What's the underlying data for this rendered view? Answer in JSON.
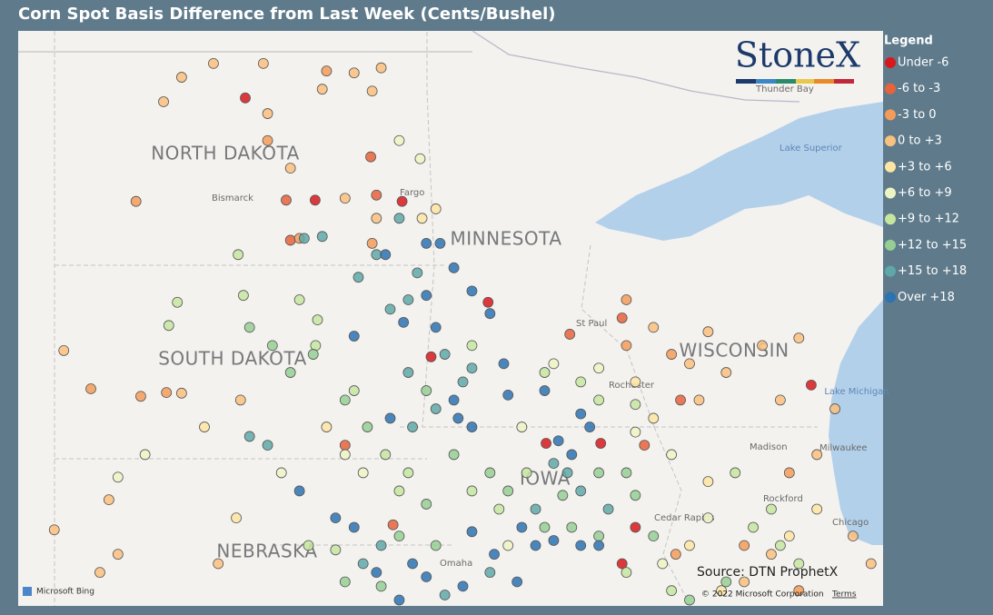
{
  "title": "Corn Spot Basis Difference from Last Week (Cents/Bushel)",
  "logo": "StoneX",
  "source": "Source: DTN ProphetX",
  "attribution": {
    "bing": "Microsoft Bing",
    "copyright": "© 2022 Microsoft Corporation",
    "terms": "Terms"
  },
  "map": {
    "labels": [
      "NORTH DAKOTA",
      "SOUTH DAKOTA",
      "MINNESOTA",
      "WISCONSIN",
      "IOWA",
      "NEBRASKA"
    ],
    "cities": [
      "Bismarck",
      "Fargo",
      "St Paul",
      "Rochester",
      "Madison",
      "Milwaukee",
      "Rockford",
      "Cedar Rapids",
      "Chicago",
      "Omaha",
      "Thunder Bay"
    ],
    "water": [
      "Lake Superior",
      "Lake Michigan"
    ]
  },
  "legend": {
    "title": "Legend",
    "items": [
      {
        "label": "Under -6",
        "color": "#d7191c",
        "points": [
          [
            -100.02,
            48.53
          ],
          [
            -98.55,
            46.9
          ],
          [
            -96.72,
            46.88
          ],
          [
            -92.54,
            43.02
          ],
          [
            -88.11,
            43.95
          ],
          [
            -93.69,
            43.02
          ],
          [
            -94.91,
            45.27
          ],
          [
            -96.11,
            44.4
          ],
          [
            -91.81,
            41.68
          ],
          [
            -92.09,
            41.1
          ]
        ]
      },
      {
        "label": "-6 to -3",
        "color": "#e6633c",
        "points": [
          [
            -97.38,
            47.59
          ],
          [
            -99.16,
            46.9
          ],
          [
            -92.09,
            45.02
          ],
          [
            -93.19,
            44.76
          ],
          [
            -96.91,
            41.72
          ],
          [
            -99.07,
            46.26
          ],
          [
            -91.62,
            42.99
          ],
          [
            -97.92,
            42.99
          ],
          [
            -97.26,
            46.98
          ],
          [
            -90.86,
            43.71
          ]
        ]
      },
      {
        "label": "-3 to 0",
        "color": "#f39c5a",
        "points": [
          [
            -98.88,
            46.29
          ],
          [
            -97.35,
            46.21
          ],
          [
            -98.31,
            48.96
          ],
          [
            -102.32,
            46.88
          ],
          [
            -103.27,
            43.89
          ],
          [
            -102.22,
            43.77
          ],
          [
            -101.68,
            43.83
          ],
          [
            -99.55,
            47.85
          ],
          [
            -90.96,
            41.25
          ],
          [
            -88.37,
            40.67
          ],
          [
            -89.52,
            41.39
          ],
          [
            -92.0,
            44.58
          ],
          [
            -88.57,
            42.55
          ],
          [
            -91.05,
            44.44
          ],
          [
            -92.0,
            45.31
          ]
        ]
      },
      {
        "label": "0 to +3",
        "color": "#f9c07e",
        "points": [
          [
            -101.36,
            48.86
          ],
          [
            -100.69,
            49.08
          ],
          [
            -99.64,
            49.08
          ],
          [
            -101.74,
            48.47
          ],
          [
            -99.55,
            48.28
          ],
          [
            -97.16,
            49.01
          ],
          [
            -97.73,
            48.93
          ],
          [
            -97.35,
            48.64
          ],
          [
            -98.4,
            48.67
          ],
          [
            -99.07,
            47.41
          ],
          [
            -97.92,
            46.93
          ],
          [
            -97.26,
            46.61
          ],
          [
            -101.36,
            43.82
          ],
          [
            -100.12,
            43.71
          ],
          [
            -103.84,
            44.5
          ],
          [
            -104.04,
            41.64
          ],
          [
            -102.7,
            41.25
          ],
          [
            -90.28,
            44.8
          ],
          [
            -89.9,
            44.15
          ],
          [
            -89.14,
            44.58
          ],
          [
            -88.37,
            44.7
          ],
          [
            -88.76,
            43.71
          ],
          [
            -87.99,
            42.84
          ],
          [
            -87.61,
            43.57
          ],
          [
            -87.23,
            41.54
          ],
          [
            -86.85,
            41.1
          ],
          [
            -88.95,
            41.25
          ],
          [
            -89.52,
            40.81
          ],
          [
            -90.47,
            43.71
          ],
          [
            -91.43,
            44.87
          ],
          [
            -103.08,
            40.96
          ],
          [
            -102.89,
            42.12
          ],
          [
            -100.59,
            41.1
          ],
          [
            -90.67,
            44.29
          ]
        ]
      },
      {
        "label": "+3 to +6",
        "color": "#fde6a3",
        "points": [
          [
            -96.3,
            46.61
          ],
          [
            -96.01,
            46.76
          ],
          [
            -100.88,
            43.28
          ],
          [
            -100.21,
            41.83
          ],
          [
            -98.31,
            43.28
          ],
          [
            -91.81,
            44.0
          ],
          [
            -91.43,
            43.42
          ],
          [
            -90.28,
            42.41
          ],
          [
            -90.0,
            40.67
          ],
          [
            -90.67,
            41.39
          ],
          [
            -88.57,
            41.54
          ],
          [
            -87.99,
            41.97
          ]
        ]
      },
      {
        "label": "+6 to +9",
        "color": "#eef5c4",
        "points": [
          [
            -96.78,
            47.85
          ],
          [
            -96.34,
            47.56
          ],
          [
            -102.7,
            42.48
          ],
          [
            -102.13,
            42.84
          ],
          [
            -99.26,
            42.55
          ],
          [
            -97.54,
            42.55
          ],
          [
            -94.49,
            41.39
          ],
          [
            -91.81,
            43.2
          ],
          [
            -91.05,
            42.84
          ],
          [
            -90.28,
            41.83
          ],
          [
            -92.58,
            44.22
          ],
          [
            -93.53,
            44.29
          ],
          [
            -94.2,
            43.28
          ],
          [
            -97.92,
            42.84
          ],
          [
            -91.24,
            41.1
          ]
        ]
      },
      {
        "label": "+9 to +12",
        "color": "#c6e6a0",
        "points": [
          [
            -100.17,
            46.03
          ],
          [
            -100.06,
            45.38
          ],
          [
            -101.45,
            45.27
          ],
          [
            -101.63,
            44.9
          ],
          [
            -98.88,
            45.31
          ],
          [
            -98.5,
            44.99
          ],
          [
            -98.54,
            44.58
          ],
          [
            -97.73,
            43.86
          ],
          [
            -97.07,
            42.84
          ],
          [
            -96.59,
            42.55
          ],
          [
            -95.25,
            42.26
          ],
          [
            -94.68,
            41.97
          ],
          [
            -94.1,
            42.55
          ],
          [
            -92.96,
            44.0
          ],
          [
            -92.58,
            43.71
          ],
          [
            -91.81,
            43.64
          ],
          [
            -93.72,
            44.15
          ],
          [
            -95.25,
            44.58
          ],
          [
            -96.78,
            42.26
          ],
          [
            -98.12,
            41.32
          ],
          [
            -98.69,
            41.39
          ],
          [
            -89.71,
            42.55
          ],
          [
            -89.33,
            41.68
          ],
          [
            -88.95,
            41.97
          ],
          [
            -88.76,
            41.39
          ],
          [
            -88.37,
            41.1
          ],
          [
            -92.0,
            40.96
          ],
          [
            -91.05,
            40.67
          ]
        ]
      },
      {
        "label": "+12 to +15",
        "color": "#95cf93",
        "points": [
          [
            -99.93,
            44.87
          ],
          [
            -99.45,
            44.58
          ],
          [
            -99.07,
            44.15
          ],
          [
            -98.59,
            44.44
          ],
          [
            -97.92,
            43.71
          ],
          [
            -97.45,
            43.28
          ],
          [
            -96.21,
            43.86
          ],
          [
            -95.63,
            42.84
          ],
          [
            -94.87,
            42.55
          ],
          [
            -94.49,
            42.26
          ],
          [
            -93.34,
            42.19
          ],
          [
            -92.58,
            42.55
          ],
          [
            -92.0,
            42.55
          ],
          [
            -91.81,
            42.19
          ],
          [
            -93.72,
            41.68
          ],
          [
            -93.15,
            41.68
          ],
          [
            -92.58,
            41.54
          ],
          [
            -96.21,
            42.05
          ],
          [
            -96.78,
            41.54
          ],
          [
            -97.92,
            40.81
          ],
          [
            -97.16,
            40.74
          ],
          [
            -96.01,
            41.39
          ],
          [
            -91.43,
            41.54
          ],
          [
            -90.67,
            40.52
          ],
          [
            -89.9,
            40.81
          ]
        ]
      },
      {
        "label": "+15 to +18",
        "color": "#5fa8a8",
        "points": [
          [
            -96.78,
            46.61
          ],
          [
            -97.26,
            46.03
          ],
          [
            -97.64,
            45.67
          ],
          [
            -98.4,
            46.32
          ],
          [
            -98.78,
            46.29
          ],
          [
            -96.4,
            45.74
          ],
          [
            -96.59,
            45.31
          ],
          [
            -96.97,
            45.16
          ],
          [
            -95.82,
            44.44
          ],
          [
            -95.25,
            44.22
          ],
          [
            -95.44,
            44.0
          ],
          [
            -96.59,
            44.15
          ],
          [
            -96.01,
            43.57
          ],
          [
            -96.5,
            43.28
          ],
          [
            -99.93,
            43.13
          ],
          [
            -99.55,
            42.99
          ],
          [
            -93.53,
            42.7
          ],
          [
            -93.24,
            42.55
          ],
          [
            -92.96,
            42.26
          ],
          [
            -92.38,
            41.97
          ],
          [
            -93.91,
            41.97
          ],
          [
            -97.16,
            41.39
          ],
          [
            -97.54,
            41.1
          ],
          [
            -95.82,
            40.6
          ],
          [
            -94.87,
            40.96
          ]
        ]
      },
      {
        "label": "Over +18",
        "color": "#2b73b2",
        "points": [
          [
            -96.21,
            46.21
          ],
          [
            -95.92,
            46.21
          ],
          [
            -95.63,
            45.82
          ],
          [
            -95.25,
            45.45
          ],
          [
            -94.87,
            45.09
          ],
          [
            -96.21,
            45.38
          ],
          [
            -96.69,
            44.95
          ],
          [
            -96.01,
            44.87
          ],
          [
            -97.73,
            44.73
          ],
          [
            -97.07,
            46.03
          ],
          [
            -94.58,
            44.29
          ],
          [
            -93.72,
            43.86
          ],
          [
            -92.96,
            43.49
          ],
          [
            -92.77,
            43.28
          ],
          [
            -93.15,
            42.84
          ],
          [
            -93.43,
            43.06
          ],
          [
            -94.49,
            43.79
          ],
          [
            -95.63,
            43.71
          ],
          [
            -95.54,
            43.42
          ],
          [
            -96.97,
            43.42
          ],
          [
            -95.25,
            43.28
          ],
          [
            -98.12,
            41.83
          ],
          [
            -97.73,
            41.68
          ],
          [
            -98.88,
            42.26
          ],
          [
            -94.2,
            41.68
          ],
          [
            -93.91,
            41.39
          ],
          [
            -93.53,
            41.47
          ],
          [
            -92.96,
            41.39
          ],
          [
            -92.58,
            41.39
          ],
          [
            -94.78,
            41.25
          ],
          [
            -94.3,
            40.81
          ],
          [
            -95.44,
            40.74
          ],
          [
            -96.21,
            40.89
          ],
          [
            -97.26,
            40.96
          ],
          [
            -96.78,
            40.52
          ],
          [
            -96.5,
            41.1
          ],
          [
            -95.25,
            41.61
          ]
        ]
      }
    ]
  }
}
